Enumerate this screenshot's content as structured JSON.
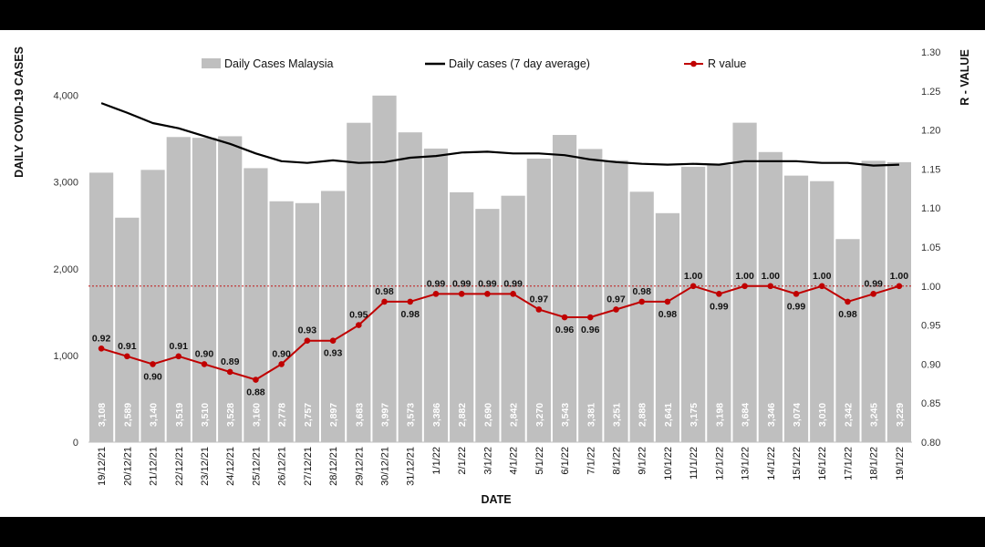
{
  "chart_data": {
    "type": "bar",
    "xlabel": "DATE",
    "ylabel": "DAILY COVID-19 CASES",
    "y2label": "R - VALUE",
    "ylim": [
      0,
      4500
    ],
    "y2lim": [
      0.8,
      1.3
    ],
    "yticks": [
      "0",
      "1,000",
      "2,000",
      "3,000",
      "4,000"
    ],
    "y2ticks": [
      "0.80",
      "0.85",
      "0.90",
      "0.95",
      "1.00",
      "1.05",
      "1.10",
      "1.15",
      "1.20",
      "1.25",
      "1.30"
    ],
    "reference_line": 1.0,
    "legend_position": "top",
    "categories": [
      "19/12/21",
      "20/12/21",
      "21/12/21",
      "22/12/21",
      "23/12/21",
      "24/12/21",
      "25/12/21",
      "26/12/21",
      "27/12/21",
      "28/12/21",
      "29/12/21",
      "30/12/21",
      "31/12/21",
      "1/1/22",
      "2/1/22",
      "3/1/22",
      "4/1/22",
      "5/1/22",
      "6/1/22",
      "7/1/22",
      "8/1/22",
      "9/1/22",
      "10/1/22",
      "11/1/22",
      "12/1/22",
      "13/1/22",
      "14/1/22",
      "15/1/22",
      "16/1/22",
      "17/1/22",
      "18/1/22",
      "19/1/22"
    ],
    "series": [
      {
        "name": "Daily Cases Malaysia",
        "kind": "bar",
        "axis": "left",
        "color": "#bfbfbf",
        "values": [
          3108,
          2589,
          3140,
          3519,
          3510,
          3528,
          3160,
          2778,
          2757,
          2897,
          3683,
          3997,
          3573,
          3386,
          2882,
          2690,
          2842,
          3270,
          3543,
          3381,
          3251,
          2888,
          2641,
          3175,
          3198,
          3684,
          3346,
          3074,
          3010,
          2342,
          3245,
          3229
        ],
        "labels": [
          "3,108",
          "2,589",
          "3,140",
          "3,519",
          "3,510",
          "3,528",
          "3,160",
          "2,778",
          "2,757",
          "2,897",
          "3,683",
          "3,997",
          "3,573",
          "3,386",
          "2,882",
          "2,690",
          "2,842",
          "3,270",
          "3,543",
          "3,381",
          "3,251",
          "2,888",
          "2,641",
          "3,175",
          "3,198",
          "3,684",
          "3,346",
          "3,074",
          "3,010",
          "2,342",
          "3,245",
          "3,229"
        ]
      },
      {
        "name": "Daily cases (7 day average)",
        "kind": "line",
        "axis": "left",
        "color": "#000000",
        "values": [
          3910,
          3800,
          3680,
          3620,
          3530,
          3440,
          3330,
          3240,
          3220,
          3250,
          3220,
          3230,
          3280,
          3300,
          3340,
          3350,
          3330,
          3330,
          3310,
          3260,
          3230,
          3210,
          3200,
          3210,
          3200,
          3240,
          3240,
          3240,
          3220,
          3220,
          3190,
          3200
        ]
      },
      {
        "name": "R value",
        "kind": "line-markers",
        "axis": "right",
        "color": "#c00000",
        "values": [
          0.92,
          0.91,
          0.9,
          0.91,
          0.9,
          0.89,
          0.88,
          0.9,
          0.93,
          0.93,
          0.95,
          0.98,
          0.98,
          0.99,
          0.99,
          0.99,
          0.99,
          0.97,
          0.96,
          0.96,
          0.97,
          0.98,
          0.98,
          1.0,
          0.99,
          1.0,
          1.0,
          0.99,
          1.0,
          0.98,
          0.99,
          1.0
        ],
        "labels": [
          "0.92",
          "0.91",
          "0.90",
          "0.91",
          "0.90",
          "0.89",
          "0.88",
          "0.90",
          "0.93",
          "0.93",
          "0.95",
          "0.98",
          "0.98",
          "0.99",
          "0.99",
          "0.99",
          "0.99",
          "0.97",
          "0.96",
          "0.96",
          "0.97",
          "0.98",
          "0.98",
          "1.00",
          "0.99",
          "1.00",
          "1.00",
          "0.99",
          "1.00",
          "0.98",
          "0.99",
          "1.00"
        ]
      }
    ]
  }
}
